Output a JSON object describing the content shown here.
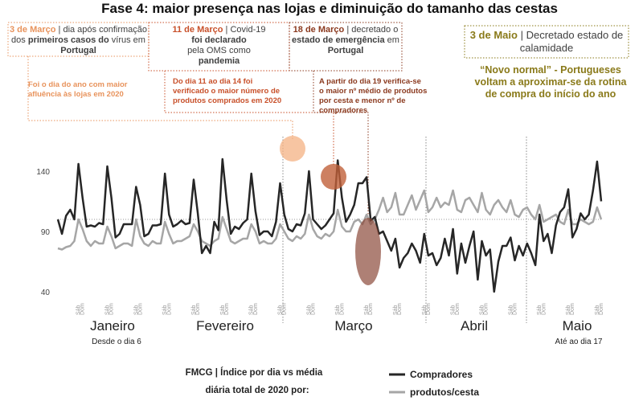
{
  "chart_data": {
    "type": "line",
    "title": "Fase 4: maior presença nas lojas e diminuição do tamanho das cestas",
    "annotations": [
      {
        "parts": [
          "3 de Março",
          "| dia após confirmação dos",
          "primeiros casos do",
          "vírus em",
          "Portugal"
        ],
        "note": "Foi o dia do ano com maior afluência às lojas em 2020"
      },
      {
        "parts": [
          "11 de Março",
          "| Covid-19",
          "foi declarado",
          "pela OMS como",
          "pandemia"
        ],
        "note": "Do dia 11 ao dia 14 foi verificado o maior número de produtos comprados em 2020"
      },
      {
        "parts": [
          "18 de Março",
          "| decretado o",
          "estado de emergência",
          "em",
          "Portugal"
        ],
        "note": "A partir do dia 19 verifica-se o maior nº médio de produtos por cesta e menor nº de compradores"
      },
      {
        "parts": [
          "3 de Maio",
          "| Decretado estado de calamidade"
        ],
        "note": "“Novo normal” - Portugueses voltam a aproximar-se da rotina de compra do início do ano"
      }
    ],
    "months": [
      {
        "name": "Janeiro",
        "note": "Desde o dia 6"
      },
      {
        "name": "Fevereiro"
      },
      {
        "name": "Março"
      },
      {
        "name": "Abril"
      },
      {
        "name": "Maio",
        "note": "Até ao dia 17"
      }
    ],
    "footnote": [
      "FMCG | Índice por dia vs média",
      "diária total de 2020 por:"
    ],
    "ylim": [
      30,
      170
    ],
    "yticks": [
      40,
      90,
      140
    ],
    "reference": 100,
    "categories": [
      null,
      null,
      null,
      null,
      null,
      "Sáb",
      "Dom",
      null,
      null,
      null,
      null,
      null,
      "Sáb",
      "Dom",
      null,
      null,
      null,
      null,
      null,
      "Sáb",
      "Dom",
      null,
      null,
      null,
      null,
      null,
      "Sáb",
      "Dom",
      null,
      null,
      null,
      null,
      null,
      "Sáb",
      "Dom",
      null,
      null,
      null,
      null,
      null,
      "Sáb",
      "Dom",
      null,
      null,
      null,
      null,
      null,
      "Sáb",
      "Dom",
      null,
      null,
      null,
      null,
      null,
      "Sáb",
      "Dom",
      null,
      null,
      null,
      null,
      null,
      "Sáb",
      "Dom",
      null,
      null,
      null,
      null,
      null,
      "Sáb",
      "Dom",
      null,
      null,
      null,
      null,
      null,
      "Sáb",
      "Dom",
      null,
      null,
      null,
      null,
      null,
      "Sáb",
      "Dom",
      null,
      null,
      null,
      null,
      null,
      "Sáb",
      "Dom",
      null,
      null,
      null,
      null,
      null,
      "Sáb",
      "Dom",
      null,
      null,
      null,
      null,
      null,
      "Sáb",
      "Dom",
      null,
      null,
      null,
      null,
      null,
      "Sáb",
      "Dom",
      null,
      null,
      null,
      null,
      null,
      "Sáb",
      "Dom",
      null,
      null,
      null,
      null,
      null,
      "Sáb",
      "Dom",
      null,
      null,
      null,
      null,
      null,
      "Sáb",
      "Dom"
    ],
    "series": [
      {
        "name": "Compradores",
        "color": "#262626",
        "values": [
          100,
          88,
          103,
          108,
          100,
          146,
          118,
          94,
          95,
          94,
          97,
          96,
          144,
          118,
          85,
          88,
          96,
          96,
          96,
          127,
          112,
          86,
          88,
          95,
          95,
          96,
          138,
          104,
          94,
          96,
          99,
          96,
          97,
          133,
          105,
          72,
          78,
          72,
          98,
          91,
          150,
          116,
          88,
          94,
          92,
          97,
          100,
          138,
          107,
          87,
          90,
          90,
          86,
          98,
          130,
          104,
          92,
          90,
          96,
          95,
          105,
          140,
          100,
          96,
          92,
          95,
          100,
          105,
          149,
          118,
          98,
          104,
          112,
          130,
          130,
          135,
          99,
          102,
          88,
          90,
          82,
          74,
          84,
          60,
          68,
          72,
          80,
          74,
          64,
          88,
          70,
          72,
          62,
          68,
          84,
          70,
          92,
          55,
          80,
          64,
          78,
          90,
          50,
          82,
          70,
          75,
          40,
          65,
          78,
          78,
          85,
          66,
          78,
          70,
          80,
          72,
          62,
          104,
          82,
          88,
          72,
          95,
          106,
          110,
          125,
          85,
          92,
          105,
          100,
          104,
          124,
          148,
          115
        ]
      },
      {
        "name": "produtos/cesta",
        "color": "#a6a6a6",
        "values": [
          76,
          75,
          77,
          78,
          82,
          100,
          92,
          82,
          78,
          82,
          80,
          80,
          94,
          86,
          76,
          78,
          80,
          80,
          78,
          100,
          86,
          80,
          78,
          82,
          80,
          80,
          98,
          88,
          80,
          82,
          82,
          84,
          86,
          96,
          90,
          82,
          80,
          78,
          82,
          84,
          102,
          92,
          82,
          80,
          82,
          84,
          84,
          96,
          90,
          80,
          82,
          80,
          80,
          84,
          96,
          90,
          84,
          82,
          86,
          84,
          88,
          104,
          92,
          86,
          84,
          88,
          86,
          90,
          108,
          94,
          90,
          90,
          98,
          100,
          96,
          104,
          96,
          100,
          108,
          118,
          106,
          110,
          122,
          104,
          104,
          112,
          120,
          108,
          116,
          124,
          106,
          110,
          118,
          110,
          114,
          112,
          124,
          108,
          106,
          116,
          118,
          112,
          106,
          122,
          108,
          104,
          112,
          116,
          110,
          106,
          116,
          104,
          102,
          108,
          110,
          104,
          100,
          112,
          98,
          100,
          102,
          104,
          98,
          96,
          108,
          96,
          96,
          100,
          98,
          96,
          98,
          110,
          100
        ]
      }
    ]
  }
}
